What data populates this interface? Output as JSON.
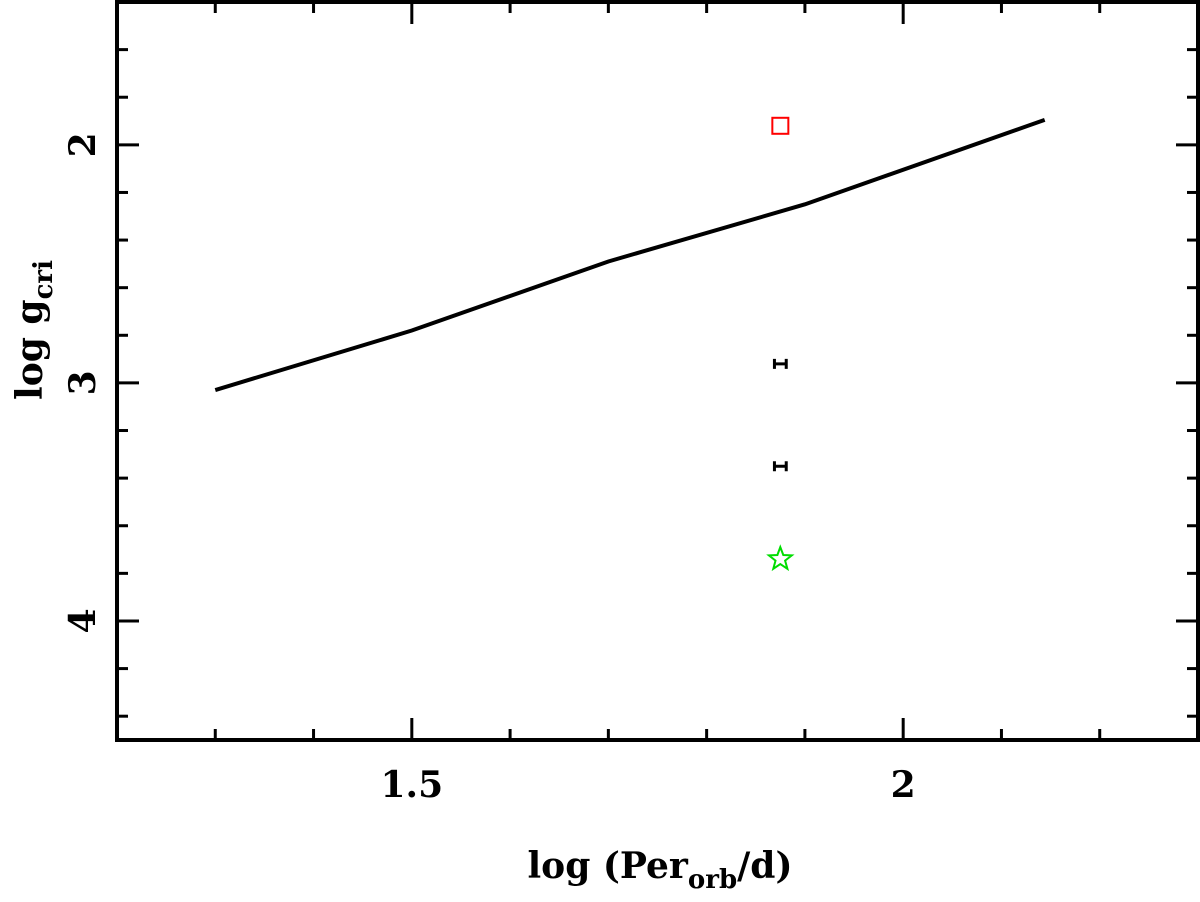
{
  "chart_data": {
    "type": "line",
    "xlabel": [
      "log (Per",
      "orb",
      "/d)"
    ],
    "ylabel": [
      "log g",
      "cri"
    ],
    "xlim": [
      1.2,
      2.3
    ],
    "ylim": [
      4.5,
      1.4
    ],
    "xticks": [
      1.5,
      2
    ],
    "yticks": [
      2,
      3,
      4
    ],
    "xticks_minor": [
      1.3,
      1.4,
      1.6,
      1.7,
      1.8,
      1.9,
      2.1,
      2.2
    ],
    "yticks_minor": [
      1.6,
      1.8,
      2.2,
      2.4,
      2.6,
      2.8,
      3.2,
      3.4,
      3.6,
      3.8,
      4.2,
      4.4
    ],
    "series": [
      {
        "type": "line",
        "color": "#000000",
        "x": [
          1.3,
          1.5,
          1.7,
          1.9,
          2.144
        ],
        "y": [
          3.03,
          2.78,
          2.49,
          2.25,
          1.895
        ]
      },
      {
        "type": "scatter",
        "marker": "square",
        "color": "#ff0000",
        "x": [
          1.875
        ],
        "y": [
          1.92
        ]
      },
      {
        "type": "errorbar",
        "color": "#000000",
        "x": [
          1.875,
          1.875
        ],
        "y": [
          2.92,
          3.35
        ],
        "xerr": [
          0.006,
          0.006
        ]
      },
      {
        "type": "scatter",
        "marker": "star",
        "color": "#00dd00",
        "x": [
          1.875
        ],
        "y": [
          3.74
        ]
      }
    ]
  }
}
